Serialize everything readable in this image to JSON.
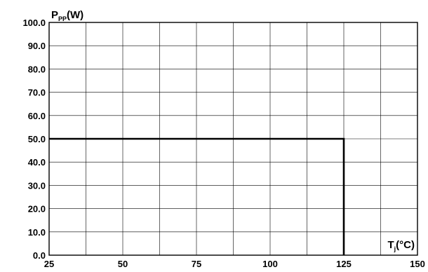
{
  "chart_data": {
    "type": "line",
    "title": "",
    "xlabel": {
      "main": "T",
      "sub": "j",
      "rest": "(°C)"
    },
    "ylabel": {
      "main": "P",
      "sub": "PP",
      "rest": "(W)"
    },
    "xlim": [
      25,
      150
    ],
    "ylim": [
      0,
      100
    ],
    "grid": true,
    "x_ticks": [
      25,
      37.5,
      50,
      62.5,
      75,
      87.5,
      100,
      112.5,
      125,
      137.5,
      150
    ],
    "y_ticks": [
      0,
      10,
      20,
      30,
      40,
      50,
      60,
      70,
      80,
      90,
      100
    ],
    "x_tick_labels": [
      {
        "value": 25,
        "label": "25"
      },
      {
        "value": 50,
        "label": "50"
      },
      {
        "value": 75,
        "label": "75"
      },
      {
        "value": 100,
        "label": "100"
      },
      {
        "value": 125,
        "label": "125"
      },
      {
        "value": 150,
        "label": "150"
      }
    ],
    "y_tick_labels": [
      {
        "value": 0,
        "label": "0.0"
      },
      {
        "value": 10,
        "label": "10.0"
      },
      {
        "value": 20,
        "label": "20.0"
      },
      {
        "value": 30,
        "label": "30.0"
      },
      {
        "value": 40,
        "label": "40.0"
      },
      {
        "value": 50,
        "label": "50.0"
      },
      {
        "value": 60,
        "label": "60.0"
      },
      {
        "value": 70,
        "label": "70.0"
      },
      {
        "value": 80,
        "label": "80.0"
      },
      {
        "value": 90,
        "label": "90.0"
      },
      {
        "value": 100,
        "label": "100.0"
      }
    ],
    "series": [
      {
        "x": [
          25,
          125,
          125
        ],
        "y": [
          50,
          50,
          0
        ]
      }
    ],
    "colors": {
      "line": "#000000",
      "grid": "#000000",
      "frame": "#000000"
    }
  }
}
